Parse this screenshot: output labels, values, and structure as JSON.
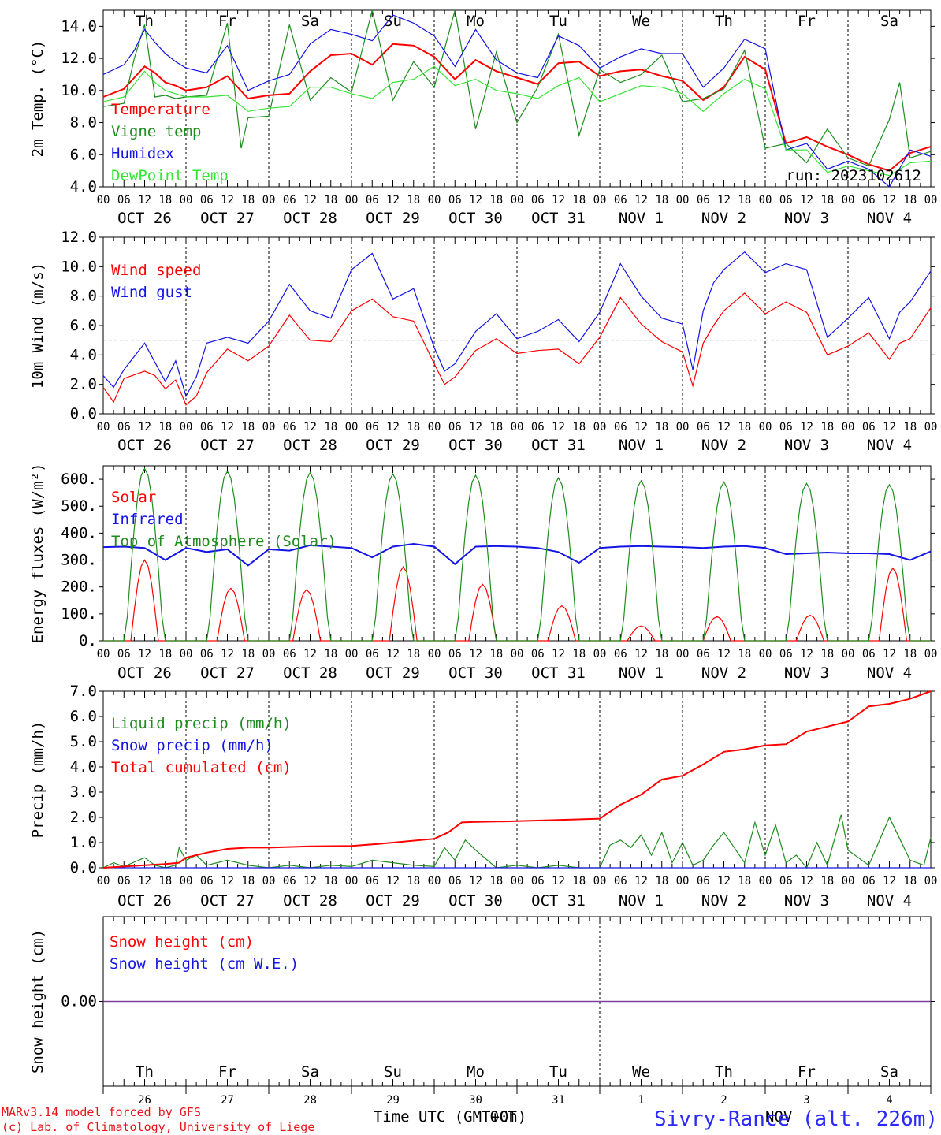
{
  "colors": {
    "red": "#ff0000",
    "green": "#1e8c1e",
    "blue": "#1414e6",
    "lightgreen": "#33e633",
    "purple": "#7a3a9a",
    "weekend": "#ff0000"
  },
  "x_axis": {
    "hour_labels": [
      "00",
      "06",
      "12",
      "18"
    ],
    "dates": [
      "OCT 26",
      "OCT 27",
      "OCT 28",
      "OCT 29",
      "OCT 30",
      "OCT 31",
      "NOV  1",
      "NOV  2",
      "NOV  3",
      "NOV  4"
    ],
    "weekdays": [
      "Th",
      "Fr",
      "Sa",
      "Su",
      "Mo",
      "Tu",
      "We",
      "Th",
      "Fr",
      "Sa"
    ],
    "weekend_flags": [
      false,
      false,
      true,
      true,
      false,
      false,
      false,
      false,
      false,
      true
    ],
    "day_numbers": [
      "26",
      "27",
      "28",
      "29",
      "30",
      "31",
      "1",
      "2",
      "3",
      "4"
    ],
    "month_labels": [
      "OCT",
      "NOV"
    ],
    "title": "Time UTC (GMT+0h)"
  },
  "footer": {
    "model": "MARv3.14 model forced by GFS",
    "lab": "(c) Lab. of Climatology, University of Liege",
    "station": "Sivry-Rance (alt. 226m)"
  },
  "chart_data": [
    {
      "type": "line",
      "ylabel": "2m Temp. (°C)",
      "ylim": [
        4,
        15
      ],
      "yticks": [
        "4.0",
        "6.0",
        "8.0",
        "10.0",
        "12.0",
        "14.0"
      ],
      "annotation": "run: 2023102612",
      "x_unit": "hours since OCT 26 00 UTC",
      "series": [
        {
          "name": "Temperature",
          "color": "red",
          "x": [
            0,
            6,
            9,
            12,
            15,
            18,
            21,
            24,
            30,
            36,
            42,
            48,
            54,
            60,
            66,
            72,
            78,
            84,
            90,
            96,
            102,
            108,
            114,
            120,
            126,
            132,
            138,
            144,
            150,
            156,
            162,
            168,
            174,
            180,
            186,
            192,
            198,
            204,
            210,
            216,
            222,
            228,
            234,
            240
          ],
          "y": [
            9.6,
            10.1,
            10.8,
            11.5,
            11.1,
            10.5,
            10.3,
            10.0,
            10.2,
            10.9,
            9.5,
            9.7,
            9.8,
            11.2,
            12.2,
            12.3,
            11.6,
            12.9,
            12.8,
            12.1,
            10.7,
            11.9,
            11.2,
            10.8,
            10.4,
            11.7,
            11.8,
            10.9,
            11.2,
            11.3,
            10.9,
            10.6,
            9.4,
            10.2,
            12.1,
            11.3,
            6.7,
            7.1,
            6.5,
            6.0,
            5.4,
            5.0,
            6.1,
            6.5
          ]
        },
        {
          "name": "Vigne temp",
          "color": "green",
          "x": [
            0,
            6,
            9,
            12,
            15,
            18,
            21,
            24,
            30,
            36,
            40,
            42,
            48,
            54,
            60,
            66,
            72,
            78,
            84,
            90,
            96,
            102,
            108,
            114,
            120,
            126,
            132,
            138,
            144,
            150,
            156,
            162,
            168,
            174,
            180,
            186,
            192,
            198,
            204,
            210,
            216,
            222,
            228,
            231,
            234,
            240
          ],
          "y": [
            9.0,
            9.2,
            12.0,
            14.1,
            9.6,
            9.7,
            9.5,
            9.6,
            9.7,
            14.2,
            6.4,
            8.3,
            8.4,
            14.1,
            9.4,
            10.8,
            9.9,
            15.0,
            9.4,
            11.8,
            10.2,
            15.0,
            7.6,
            12.4,
            8.0,
            10.2,
            13.5,
            7.2,
            11.3,
            10.5,
            11.0,
            12.2,
            9.3,
            9.5,
            10.1,
            12.5,
            6.4,
            6.7,
            5.5,
            7.6,
            5.8,
            5.3,
            8.2,
            10.5,
            5.8,
            6.2
          ]
        },
        {
          "name": "Humidex",
          "color": "blue",
          "x": [
            0,
            6,
            9,
            12,
            15,
            18,
            21,
            24,
            30,
            36,
            42,
            48,
            54,
            60,
            66,
            72,
            78,
            84,
            90,
            96,
            102,
            108,
            114,
            120,
            126,
            132,
            138,
            144,
            150,
            156,
            162,
            168,
            174,
            180,
            186,
            192,
            198,
            204,
            210,
            216,
            222,
            228,
            234,
            240
          ],
          "y": [
            11.0,
            11.6,
            12.5,
            13.8,
            13.0,
            12.3,
            11.8,
            11.4,
            11.1,
            12.8,
            10.0,
            10.6,
            11.0,
            12.9,
            13.8,
            13.5,
            13.1,
            14.7,
            14.2,
            13.4,
            11.5,
            13.8,
            11.9,
            11.1,
            10.8,
            13.4,
            12.8,
            11.4,
            12.1,
            12.6,
            12.3,
            12.3,
            10.2,
            11.4,
            13.2,
            12.6,
            6.3,
            6.7,
            5.1,
            5.6,
            5.1,
            4.0,
            6.3,
            5.9
          ]
        },
        {
          "name": "DewPoint Temp",
          "color": "lightgreen",
          "x": [
            0,
            6,
            9,
            12,
            15,
            18,
            21,
            24,
            30,
            36,
            42,
            48,
            54,
            60,
            66,
            72,
            78,
            84,
            90,
            96,
            102,
            108,
            114,
            120,
            126,
            132,
            138,
            144,
            150,
            156,
            162,
            168,
            174,
            180,
            186,
            192,
            198,
            204,
            210,
            216,
            222,
            228,
            234,
            240
          ],
          "y": [
            9.3,
            9.6,
            10.4,
            11.2,
            10.5,
            10.0,
            9.8,
            9.6,
            9.6,
            9.7,
            8.7,
            8.9,
            9.0,
            10.2,
            10.2,
            9.8,
            9.5,
            10.5,
            10.7,
            11.5,
            10.3,
            10.7,
            10.0,
            9.8,
            9.5,
            10.3,
            10.8,
            9.3,
            9.8,
            10.3,
            10.2,
            9.8,
            8.7,
            9.8,
            10.7,
            10.1,
            6.3,
            6.3,
            4.9,
            5.3,
            5.0,
            4.7,
            5.5,
            5.6
          ]
        }
      ]
    },
    {
      "type": "line",
      "ylabel": "10m Wind (m/s)",
      "ylim": [
        0,
        12
      ],
      "yticks": [
        "0.0",
        "2.0",
        "4.0",
        "6.0",
        "8.0",
        "10.0",
        "12.0"
      ],
      "reference_line": 5.0,
      "x_unit": "hours since OCT 26 00 UTC",
      "series": [
        {
          "name": "Wind speed",
          "color": "red",
          "x": [
            0,
            3,
            6,
            12,
            15,
            18,
            21,
            24,
            27,
            30,
            36,
            42,
            48,
            54,
            60,
            66,
            72,
            78,
            84,
            90,
            96,
            99,
            102,
            108,
            114,
            120,
            126,
            132,
            138,
            144,
            150,
            156,
            162,
            168,
            171,
            174,
            177,
            180,
            186,
            192,
            198,
            204,
            210,
            216,
            222,
            228,
            231,
            234,
            240
          ],
          "y": [
            1.8,
            0.8,
            2.4,
            2.9,
            2.6,
            1.7,
            2.3,
            0.6,
            1.2,
            2.8,
            4.4,
            3.6,
            4.6,
            6.7,
            5.0,
            4.9,
            7.0,
            7.8,
            6.6,
            6.3,
            3.4,
            2.0,
            2.5,
            4.3,
            5.1,
            4.1,
            4.3,
            4.4,
            3.4,
            5.2,
            7.9,
            6.1,
            4.9,
            4.2,
            1.9,
            4.8,
            6.0,
            7.0,
            8.2,
            6.8,
            7.6,
            6.9,
            4.0,
            4.6,
            5.5,
            3.7,
            4.8,
            5.1,
            7.2
          ]
        },
        {
          "name": "Wind gust",
          "color": "blue",
          "x": [
            0,
            3,
            6,
            12,
            15,
            18,
            21,
            24,
            27,
            30,
            36,
            42,
            48,
            54,
            60,
            66,
            72,
            78,
            84,
            90,
            96,
            99,
            102,
            108,
            114,
            120,
            126,
            132,
            138,
            144,
            150,
            156,
            162,
            168,
            171,
            174,
            177,
            180,
            186,
            192,
            198,
            204,
            210,
            216,
            222,
            228,
            231,
            234,
            240
          ],
          "y": [
            2.6,
            1.8,
            3.0,
            4.8,
            3.5,
            2.2,
            3.6,
            1.2,
            2.5,
            4.8,
            5.2,
            4.8,
            6.3,
            8.8,
            7.0,
            6.5,
            9.8,
            10.9,
            7.8,
            8.5,
            4.5,
            2.9,
            3.4,
            5.6,
            6.8,
            5.1,
            5.6,
            6.4,
            4.9,
            6.9,
            10.2,
            8.0,
            6.5,
            6.1,
            3.0,
            7.0,
            8.9,
            9.8,
            11.0,
            9.6,
            10.2,
            9.8,
            5.2,
            6.5,
            7.9,
            5.1,
            6.9,
            7.6,
            9.7
          ]
        }
      ]
    },
    {
      "type": "line",
      "ylabel": "Energy fluxes (W/m²)",
      "ylim": [
        0,
        650
      ],
      "yticks": [
        "0.",
        "100.",
        "200.",
        "300.",
        "400.",
        "500.",
        "600."
      ],
      "x_unit": "hours since OCT 26 00 UTC",
      "series": [
        {
          "name": "Solar",
          "color": "red",
          "peaks": [
            300,
            195,
            190,
            275,
            210,
            130,
            55,
            90,
            95,
            270
          ],
          "peak_hours": [
            12,
            13,
            11,
            15,
            14,
            13,
            12,
            10,
            13,
            13
          ]
        },
        {
          "name": "Infrared",
          "color": "blue",
          "x": [
            0,
            6,
            12,
            18,
            24,
            30,
            36,
            42,
            48,
            54,
            60,
            66,
            72,
            78,
            84,
            90,
            96,
            102,
            108,
            114,
            120,
            126,
            132,
            138,
            144,
            150,
            156,
            162,
            168,
            174,
            180,
            186,
            192,
            198,
            204,
            210,
            216,
            222,
            228,
            234,
            240
          ],
          "y": [
            348,
            350,
            345,
            300,
            345,
            330,
            340,
            280,
            340,
            335,
            355,
            350,
            345,
            310,
            350,
            360,
            350,
            285,
            350,
            352,
            350,
            345,
            330,
            290,
            345,
            350,
            352,
            350,
            348,
            345,
            350,
            352,
            345,
            322,
            325,
            328,
            325,
            325,
            322,
            300,
            332
          ]
        },
        {
          "name": "Top of Atmosphere (Solar)",
          "color": "green",
          "peaks": [
            640,
            630,
            625,
            620,
            615,
            605,
            595,
            590,
            585,
            580
          ]
        }
      ]
    },
    {
      "type": "line",
      "ylabel": "Precip (mm/h)",
      "ylim": [
        0,
        7
      ],
      "yticks": [
        "0.0",
        "1.0",
        "2.0",
        "3.0",
        "4.0",
        "5.0",
        "6.0",
        "7.0"
      ],
      "x_unit": "hours since OCT 26 00 UTC",
      "series": [
        {
          "name": "Liquid precip (mm/h)",
          "color": "green",
          "x": [
            0,
            3,
            6,
            12,
            15,
            18,
            21,
            22,
            24,
            27,
            30,
            36,
            42,
            48,
            54,
            60,
            66,
            72,
            78,
            84,
            90,
            96,
            99,
            102,
            105,
            108,
            114,
            120,
            126,
            132,
            138,
            144,
            147,
            150,
            153,
            156,
            159,
            162,
            165,
            168,
            171,
            174,
            177,
            180,
            186,
            189,
            192,
            195,
            198,
            201,
            204,
            207,
            210,
            214,
            216,
            219,
            222,
            228,
            234,
            238,
            240
          ],
          "y": [
            0,
            0.2,
            0.05,
            0.4,
            0.1,
            0,
            0.1,
            0.8,
            0.3,
            0.5,
            0.1,
            0.3,
            0.1,
            0,
            0.1,
            0,
            0.1,
            0.05,
            0.3,
            0.2,
            0.1,
            0.05,
            0.8,
            0.3,
            1.1,
            0.7,
            0,
            0.1,
            0,
            0.1,
            0,
            0,
            0.9,
            1.1,
            0.8,
            1.3,
            0.5,
            1.4,
            0.2,
            1.0,
            0.1,
            0.3,
            0.9,
            1.4,
            0.2,
            1.8,
            0.5,
            1.7,
            0.2,
            0.5,
            0,
            1.0,
            0.1,
            2.1,
            0.7,
            0.4,
            0.1,
            2.0,
            0.3,
            0.1,
            1.2
          ]
        },
        {
          "name": "Snow precip (mm/h)",
          "color": "blue",
          "x": [
            0,
            240
          ],
          "y": [
            0,
            0
          ]
        },
        {
          "name": "Total cumulated (cm)",
          "color": "red",
          "x": [
            0,
            12,
            18,
            22,
            24,
            30,
            36,
            42,
            48,
            60,
            72,
            80,
            84,
            96,
            100,
            104,
            108,
            120,
            132,
            144,
            150,
            156,
            162,
            168,
            174,
            180,
            186,
            192,
            198,
            204,
            210,
            216,
            222,
            228,
            234,
            240
          ],
          "y": [
            0,
            0.1,
            0.15,
            0.2,
            0.4,
            0.6,
            0.75,
            0.8,
            0.8,
            0.85,
            0.87,
            0.95,
            1.0,
            1.15,
            1.4,
            1.8,
            1.82,
            1.85,
            1.9,
            1.95,
            2.5,
            2.9,
            3.5,
            3.65,
            4.1,
            4.6,
            4.7,
            4.85,
            4.9,
            5.4,
            5.6,
            5.8,
            6.4,
            6.5,
            6.7,
            7.0
          ]
        }
      ]
    },
    {
      "type": "line",
      "ylabel": "Snow height (cm)",
      "yticks": [
        "0.00"
      ],
      "x_unit": "hours since OCT 26 00 UTC",
      "series": [
        {
          "name": "Snow height (cm)",
          "color": "red",
          "x": [
            0,
            240
          ],
          "y": [
            0,
            0
          ]
        },
        {
          "name": "Snow height (cm W.E.)",
          "color": "blue",
          "x": [
            0,
            240
          ],
          "y": [
            0,
            0
          ]
        }
      ]
    }
  ]
}
